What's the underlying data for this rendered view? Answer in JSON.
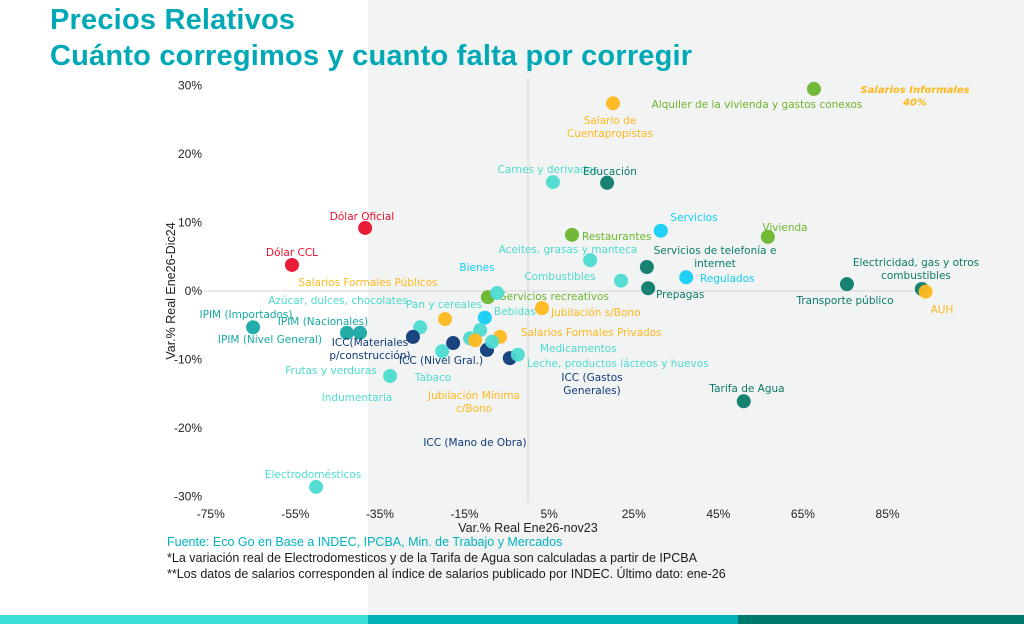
{
  "title": {
    "line1": "Precios Relativos",
    "line2": "Cuánto corregimos y cuanto falta por corregir"
  },
  "footer": {
    "source": "Fuente: Eco Go en Base a INDEC, IPCBA, Min. de Trabajo y Mercados",
    "note1": "*La variación real de Electrodomesticos y de la Tarifa de Agua son calculadas a partir de IPCBA",
    "note2": "**Los datos de salarios corresponden al índice de salarios publicado por INDEC. Último dato: ene-26"
  },
  "colors": {
    "title": "#00a9b5",
    "green": "#6cb52d",
    "yellow": "#ffb81c",
    "lightteal": "#4ddbd1",
    "cyan": "#14cdf5",
    "dark": "#0b7a6a",
    "teal": "#17a9a3",
    "navy": "#0e3a78",
    "red": "#e8112d",
    "bar1": "#3de0d6",
    "bar2": "#00b2b8",
    "bar3": "#007a6e"
  },
  "chart_data": {
    "type": "scatter",
    "xlabel": "Var.% Real Ene26-nov23",
    "ylabel": "Var.% Real  Ene26-Dic24",
    "xlim": [
      -75,
      95
    ],
    "ylim": [
      -30,
      30
    ],
    "x_ticks": [
      "-75%",
      "-55%",
      "-35%",
      "-15%",
      "5%",
      "25%",
      "45%",
      "65%",
      "85%"
    ],
    "x_tick_values": [
      -75,
      -55,
      -35,
      -15,
      5,
      25,
      45,
      65,
      85
    ],
    "y_ticks": [
      "30%",
      "20%",
      "10%",
      "0%",
      "-10%",
      "-20%",
      "-30%"
    ],
    "y_tick_values": [
      30,
      20,
      10,
      0,
      -10,
      -20,
      -30
    ],
    "grid": false,
    "annotations": [
      {
        "text": [
          "Salarios Informales",
          "40%"
        ],
        "color": "yellow"
      }
    ],
    "points": [
      {
        "label": [
          "Alquiler de la vivienda y gastos conexos"
        ],
        "x": 67.6,
        "y": 29.5,
        "color": "green"
      },
      {
        "label": [
          "Salario de",
          "Cuentapropistas"
        ],
        "x": 20.1,
        "y": 27.4,
        "color": "yellow"
      },
      {
        "label": [
          "Carnes y derivados"
        ],
        "x": 5.9,
        "y": 15.9,
        "color": "lightteal"
      },
      {
        "label": [
          "Educación"
        ],
        "x": 18.7,
        "y": 15.8,
        "color": "dark"
      },
      {
        "label": [
          "Dólar Oficial"
        ],
        "x": -38.5,
        "y": 9.2,
        "color": "red"
      },
      {
        "label": [
          "Dólar CCL"
        ],
        "x": -55.8,
        "y": 3.8,
        "color": "red"
      },
      {
        "label": [
          "Servicios"
        ],
        "x": 31.4,
        "y": 8.8,
        "color": "cyan"
      },
      {
        "label": [
          "Vivienda"
        ],
        "x": 56.7,
        "y": 7.9,
        "color": "green"
      },
      {
        "label": [
          "Restaurantes"
        ],
        "x": 10.4,
        "y": 8.2,
        "color": "green"
      },
      {
        "label": [
          "Aceites, grasas y manteca"
        ],
        "x": 14.7,
        "y": 4.5,
        "color": "lightteal"
      },
      {
        "label": [
          "Servicios  de telefonía e",
          "internet"
        ],
        "x": 28.1,
        "y": 3.5,
        "color": "dark"
      },
      {
        "label": [
          "Combustibles"
        ],
        "x": 22.0,
        "y": 1.5,
        "color": "lightteal"
      },
      {
        "label": [
          "Regulados"
        ],
        "x": 37.4,
        "y": 2.0,
        "color": "cyan"
      },
      {
        "label": [
          "Prepagas"
        ],
        "x": 28.4,
        "y": 0.4,
        "color": "dark"
      },
      {
        "label": [
          "Transporte público"
        ],
        "x": 75.4,
        "y": 1.0,
        "color": "dark"
      },
      {
        "label": [
          "Electricidad, gas y otros",
          "combustibles"
        ],
        "x": 93.1,
        "y": 0.3,
        "color": "dark"
      },
      {
        "label": [
          "AUH"
        ],
        "x": 94.0,
        "y": -0.1,
        "color": "yellow"
      },
      {
        "label": [
          "Tarifa de Agua"
        ],
        "x": 51.0,
        "y": -16.1,
        "color": "dark"
      },
      {
        "label": [
          "Bienes"
        ],
        "x": -10.2,
        "y": -3.9,
        "color": "cyan"
      },
      {
        "label": [
          "Servicios recreativos"
        ],
        "x": -9.5,
        "y": -0.9,
        "color": "green"
      },
      {
        "label": [
          "Bebidas"
        ],
        "x": -7.3,
        "y": -0.3,
        "color": "lightteal"
      },
      {
        "label": [
          "Jubilación s/Bono"
        ],
        "x": 3.3,
        "y": -2.5,
        "color": "yellow"
      },
      {
        "label": [
          "Salarios Formales Públicos"
        ],
        "x": -19.6,
        "y": -4.1,
        "color": "yellow"
      },
      {
        "label": [
          "Azúcar, dulces, chocolates"
        ],
        "x": -25.5,
        "y": -5.3,
        "color": "lightteal"
      },
      {
        "label": [
          "Pan y cereales"
        ],
        "x": -11.3,
        "y": -5.7,
        "color": "lightteal"
      },
      {
        "label": [
          "IPIM (Importados)"
        ],
        "x": -65.0,
        "y": -5.3,
        "color": "teal"
      },
      {
        "label": [
          "IPIM (Nacionales)"
        ],
        "x": -39.7,
        "y": -6.1,
        "color": "teal"
      },
      {
        "label": [
          "IPIM (Nivel General)"
        ],
        "x": -42.8,
        "y": -6.1,
        "color": "teal"
      },
      {
        "label": [
          "ICC(Materiales",
          "p/construcción)"
        ],
        "x": -27.2,
        "y": -6.7,
        "color": "navy"
      },
      {
        "label": [
          "ICC (Nivel Gral.)"
        ],
        "x": -17.7,
        "y": -7.6,
        "color": "navy"
      },
      {
        "label": [
          "ICC (Mano de Obra)"
        ],
        "x": -9.7,
        "y": -8.6,
        "color": "navy"
      },
      {
        "label": [
          "ICC (Gastos",
          "Generales)"
        ],
        "x": -4.3,
        "y": -9.8,
        "color": "navy"
      },
      {
        "label": [
          "Frutas y verduras"
        ],
        "x": -20.3,
        "y": -8.8,
        "color": "lightteal"
      },
      {
        "label": [
          "Indumentaria"
        ],
        "x": -32.6,
        "y": -12.4,
        "color": "lightteal"
      },
      {
        "label": [
          "Tabaco"
        ],
        "x": -13.7,
        "y": -6.9,
        "color": "lightteal"
      },
      {
        "label": [
          "Jubilación Mínima",
          "c/Bono"
        ],
        "x": -12.5,
        "y": -7.2,
        "color": "yellow"
      },
      {
        "label": [
          "Salarios Formales Privados"
        ],
        "x": -6.6,
        "y": -6.7,
        "color": "yellow"
      },
      {
        "label": [
          "Medicamentos"
        ],
        "x": -8.5,
        "y": -7.4,
        "color": "lightteal"
      },
      {
        "label": [
          "Leche, productos lácteos y huevos"
        ],
        "x": -2.4,
        "y": -9.3,
        "color": "lightteal"
      },
      {
        "label": [
          "Electrodomésticos"
        ],
        "x": -50.1,
        "y": -28.6,
        "color": "lightteal"
      }
    ]
  }
}
